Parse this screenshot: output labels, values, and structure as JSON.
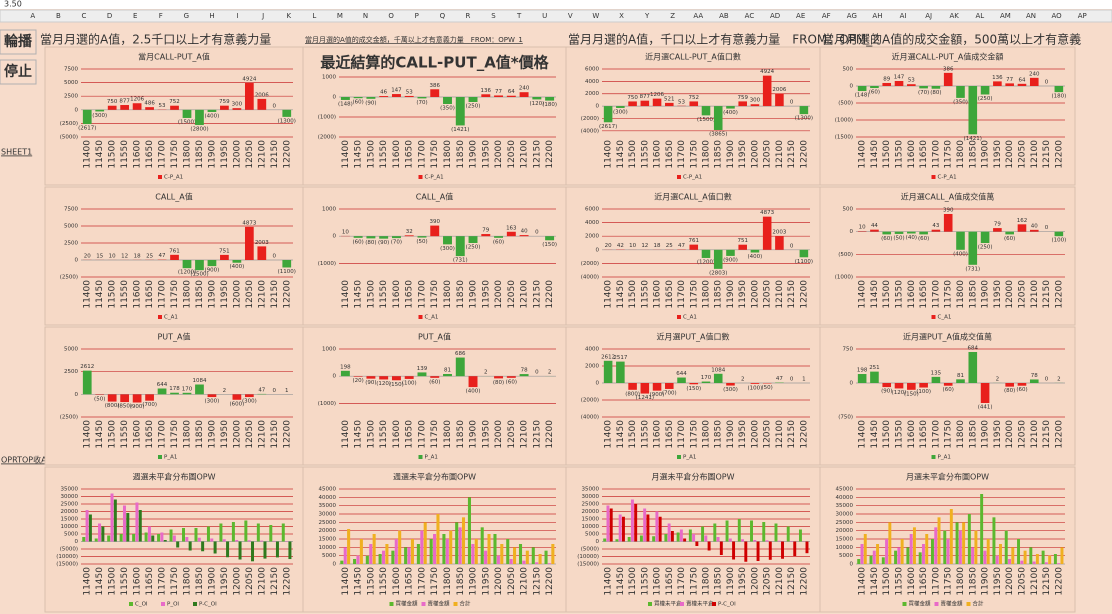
{
  "sheet": {
    "formula_value": "3.50",
    "columns": [
      "A",
      "B",
      "C",
      "D",
      "E",
      "F",
      "G",
      "H",
      "I",
      "J",
      "K",
      "L",
      "M",
      "N",
      "O",
      "P",
      "Q",
      "R",
      "S",
      "T",
      "U",
      "V",
      "W",
      "X",
      "Y",
      "Z",
      "AA",
      "AB",
      "AC",
      "AD",
      "AE",
      "AF",
      "AG",
      "AH",
      "AI",
      "AJ",
      "AK",
      "AL",
      "AM",
      "AN",
      "AO",
      "AP"
    ],
    "buttons": [
      "輪播",
      "停止"
    ],
    "links": [
      "SHEET1",
      "OPRTOP收A"
    ],
    "headers": [
      "當月月選的A值，2.5千口以上才有意義力量",
      "當月月選的A值的成交金額，千萬以上才有意義力量　FROM：OPW_1",
      "當月月選的A值，千口以上才有意義力量　FROM：OPM_2",
      "當月月選的A值的成交金額，500萬以上才有意義"
    ]
  },
  "strikes": [
    "11400",
    "11450",
    "11500",
    "11550",
    "11600",
    "11650",
    "11700",
    "11750",
    "11800",
    "11850",
    "11900",
    "11950",
    "12000",
    "12050",
    "12100",
    "12150",
    "12200"
  ],
  "charts": [
    {
      "type": "bar",
      "title": "當月CALL-PUT_A值",
      "series_name": "C-P_A1",
      "colors": {
        "positive": "#e8201c",
        "negative": "#3da63a"
      },
      "ylim": [
        -5000,
        7500
      ],
      "yticks": [
        7500,
        5000,
        2500,
        0,
        {
          "value": -2500,
          "label": "(2500)"
        },
        {
          "value": -5000,
          "label": "(5000)"
        }
      ],
      "values": [
        -2617,
        -300,
        750,
        877,
        1206,
        486,
        53,
        752,
        -1500,
        -2800,
        -400,
        759,
        300,
        4924,
        2006,
        0,
        -1300
      ],
      "value_labels": [
        "(2617)",
        "(300)",
        "750",
        "877",
        "1206",
        "486",
        "53",
        "752",
        "(1500)",
        "(2800)",
        "(400)",
        "759",
        "300",
        "4924",
        "2006",
        "0",
        "(1300)"
      ]
    },
    {
      "type": "bar",
      "title": "最近結算的CALL-PUT_A值*價格",
      "series_name": "C-P_A1",
      "colors": {
        "positive": "#e8201c",
        "negative": "#3da63a"
      },
      "ylim": [
        -2000,
        1000
      ],
      "yticks": [
        1000,
        0,
        {
          "value": -1000,
          "label": "(1000)"
        },
        {
          "value": -2000,
          "label": "(2000)"
        }
      ],
      "values": [
        -148,
        -60,
        -90,
        46,
        147,
        53,
        -70,
        386,
        -350,
        -1421,
        -250,
        136,
        77,
        64,
        240,
        -120,
        -180
      ],
      "value_labels": [
        "(148)",
        "(60)",
        "(90)",
        "46",
        "147",
        "53",
        "(70)",
        "386",
        "(350)",
        "(1421)",
        "(250)",
        "136",
        "77",
        "64",
        "240",
        "(120)",
        "(180)"
      ]
    },
    {
      "type": "bar",
      "title": "近月選CALL-PUT_A值口數",
      "series_name": "C-P_A1",
      "colors": {
        "positive": "#e8201c",
        "negative": "#3da63a"
      },
      "ylim": [
        -5000,
        6000
      ],
      "yticks": [
        6000,
        4000,
        2000,
        0,
        {
          "value": -2000,
          "label": "(2000)"
        },
        {
          "value": -4000,
          "label": "(4000)"
        }
      ],
      "values": [
        -2617,
        -300,
        750,
        877,
        1206,
        521,
        53,
        752,
        -1500,
        -3865,
        -400,
        759,
        300,
        4924,
        2006,
        0,
        -1300
      ],
      "value_labels": [
        "(2617)",
        "(300)",
        "750",
        "877",
        "1206",
        "521",
        "53",
        "752",
        "(1500)",
        "(3865)",
        "(400)",
        "759",
        "300",
        "4924",
        "2006",
        "0",
        "(1300)"
      ]
    },
    {
      "type": "bar",
      "title": "近月選CALL-PUT_A值成交金額",
      "series_name": "C-P_A1",
      "colors": {
        "positive": "#e8201c",
        "negative": "#3da63a"
      },
      "ylim": [
        -1500,
        500
      ],
      "yticks": [
        500,
        0,
        {
          "value": -500,
          "label": "(500)"
        },
        {
          "value": -1000,
          "label": "(1000)"
        },
        {
          "value": -1500,
          "label": "(1500)"
        }
      ],
      "values": [
        -148,
        -60,
        89,
        147,
        53,
        -70,
        -80,
        386,
        -350,
        -1421,
        -250,
        136,
        77,
        64,
        240,
        0,
        -180
      ],
      "value_labels": [
        "(148)",
        "(60)",
        "89",
        "147",
        "53",
        "(70)",
        "(80)",
        "386",
        "(350)",
        "(1421)",
        "(250)",
        "136",
        "77",
        "64",
        "240",
        "0",
        "(180)"
      ]
    },
    {
      "type": "bar",
      "title": "CALL_A值",
      "series_name": "C_A1",
      "colors": {
        "positive": "#e8201c",
        "negative": "#3da63a"
      },
      "ylim": [
        -2500,
        7500
      ],
      "yticks": [
        7500,
        5000,
        2500,
        0,
        {
          "value": -2500,
          "label": "(2500)"
        }
      ],
      "values": [
        20,
        15,
        10,
        12,
        18,
        25,
        47,
        761,
        -1200,
        -1500,
        -900,
        751,
        -400,
        4873,
        2003,
        0,
        -1100
      ],
      "value_labels": [
        "20",
        "15",
        "10",
        "12",
        "18",
        "25",
        "47",
        "761",
        "(1200)",
        "(1500)",
        "(900)",
        "751",
        "(400)",
        "4873",
        "2003",
        "0",
        "(1100)"
      ]
    },
    {
      "type": "bar",
      "title": "CALL_A值",
      "series_name": "C_A1",
      "colors": {
        "positive": "#e8201c",
        "negative": "#3da63a"
      },
      "ylim": [
        -1500,
        1000
      ],
      "yticks": [
        1000,
        0,
        {
          "value": -1000,
          "label": "(1000)"
        }
      ],
      "values": [
        10,
        -60,
        -80,
        -90,
        -70,
        32,
        -50,
        390,
        -300,
        -731,
        -250,
        79,
        -60,
        163,
        40,
        0,
        -150
      ],
      "value_labels": [
        "10",
        "(60)",
        "(80)",
        "(90)",
        "(70)",
        "32",
        "(50)",
        "390",
        "(300)",
        "(731)",
        "(250)",
        "79",
        "(60)",
        "163",
        "40",
        "0",
        "(150)"
      ]
    },
    {
      "type": "bar",
      "title": "近月選CALL_A值口數",
      "series_name": "C_A1",
      "colors": {
        "positive": "#e8201c",
        "negative": "#3da63a"
      },
      "ylim": [
        -4000,
        6000
      ],
      "yticks": [
        6000,
        4000,
        2000,
        0,
        {
          "value": -2000,
          "label": "(2000)"
        },
        {
          "value": -4000,
          "label": "(4000)"
        }
      ],
      "values": [
        20,
        42,
        10,
        12,
        18,
        25,
        47,
        761,
        -1200,
        -2803,
        -900,
        751,
        -400,
        4873,
        2003,
        0,
        -1100
      ],
      "value_labels": [
        "20",
        "42",
        "10",
        "12",
        "18",
        "25",
        "47",
        "761",
        "(1200)",
        "(2803)",
        "(900)",
        "751",
        "(400)",
        "4873",
        "2003",
        "0",
        "(1100)"
      ]
    },
    {
      "type": "bar",
      "title": "近月選CALL_A值成交值萬",
      "series_name": "C_A1",
      "colors": {
        "positive": "#e8201c",
        "negative": "#3da63a"
      },
      "ylim": [
        -1000,
        500
      ],
      "yticks": [
        500,
        0,
        {
          "value": -500,
          "label": "(500)"
        },
        {
          "value": -1000,
          "label": "(1000)"
        }
      ],
      "values": [
        10,
        44,
        -60,
        -50,
        -40,
        -60,
        43,
        390,
        -400,
        -731,
        -250,
        79,
        -60,
        162,
        40,
        0,
        -100
      ],
      "value_labels": [
        "10",
        "44",
        "(60)",
        "(50)",
        "(40)",
        "(60)",
        "43",
        "390",
        "(400)",
        "(731)",
        "(250)",
        "79",
        "(60)",
        "162",
        "40",
        "0",
        "(100)"
      ]
    },
    {
      "type": "bar",
      "title": "PUT_A值",
      "series_name": "P_A1",
      "colors": {
        "positive": "#3da63a",
        "negative": "#e8201c"
      },
      "ylim": [
        -2500,
        5000
      ],
      "yticks": [
        5000,
        2500,
        0,
        {
          "value": -2500,
          "label": "(2500)"
        }
      ],
      "values": [
        2612,
        -50,
        -800,
        -850,
        -900,
        -700,
        644,
        178,
        170,
        1084,
        -300,
        2,
        -600,
        -300,
        47,
        0,
        1
      ],
      "value_labels": [
        "2612",
        "(50)",
        "(800)",
        "(850)",
        "(900)",
        "(700)",
        "644",
        "178",
        "170",
        "1084",
        "(300)",
        "2",
        "(600)",
        "(300)",
        "47",
        "0",
        "1"
      ]
    },
    {
      "type": "bar",
      "title": "PUT_A值",
      "series_name": "P_A1",
      "colors": {
        "positive": "#3da63a",
        "negative": "#e8201c"
      },
      "ylim": [
        -1500,
        1000
      ],
      "yticks": [
        1000,
        0,
        {
          "value": -1000,
          "label": "(1000)"
        }
      ],
      "values": [
        198,
        -20,
        -90,
        -120,
        -150,
        -100,
        139,
        -60,
        81,
        686,
        -400,
        2,
        -80,
        -60,
        78,
        0,
        2
      ],
      "value_labels": [
        "198",
        "(20)",
        "(90)",
        "(120)",
        "(150)",
        "(100)",
        "139",
        "(60)",
        "81",
        "686",
        "(400)",
        "2",
        "(80)",
        "(60)",
        "78",
        "0",
        "2"
      ]
    },
    {
      "type": "bar",
      "title": "近月選PUT_A值口數",
      "series_name": "P_A1",
      "colors": {
        "positive": "#3da63a",
        "negative": "#e8201c"
      },
      "ylim": [
        -4000,
        4000
      ],
      "yticks": [
        4000,
        2000,
        0,
        {
          "value": -2000,
          "label": "(2000)"
        },
        {
          "value": -4000,
          "label": "(4000)"
        }
      ],
      "values": [
        2612,
        2517,
        -800,
        -1241,
        -900,
        -700,
        644,
        -150,
        170,
        1084,
        -300,
        2,
        -100,
        -50,
        47,
        0,
        1
      ],
      "value_labels": [
        "2612",
        "2517",
        "(800)",
        "(1241)",
        "(900)",
        "(700)",
        "644",
        "(150)",
        "170",
        "1084",
        "(300)",
        "2",
        "(100)",
        "(50)",
        "47",
        "0",
        "1"
      ]
    },
    {
      "type": "bar",
      "title": "近月選PUT_A值成交值萬",
      "series_name": "P_A1",
      "colors": {
        "positive": "#3da63a",
        "negative": "#e8201c"
      },
      "ylim": [
        -750,
        750
      ],
      "yticks": [
        750,
        0,
        {
          "value": -750,
          "label": "(750)"
        }
      ],
      "values": [
        198,
        251,
        -90,
        -120,
        -150,
        -100,
        135,
        -60,
        81,
        684,
        -441,
        2,
        -80,
        -60,
        78,
        0,
        2
      ],
      "value_labels": [
        "198",
        "251",
        "(90)",
        "(120)",
        "(150)",
        "(100)",
        "135",
        "(60)",
        "81",
        "684",
        "(441)",
        "2",
        "(80)",
        "(60)",
        "78",
        "0",
        "2"
      ]
    },
    {
      "type": "grouped_bar",
      "title": "週選未平倉分布圖OPW",
      "ylim": [
        -15000,
        35000
      ],
      "yticks": [
        35000,
        30000,
        25000,
        20000,
        15000,
        10000,
        5000,
        0,
        {
          "value": -5000,
          "label": "(5000)"
        },
        {
          "value": -10000,
          "label": "(10000)"
        },
        {
          "value": -15000,
          "label": "(15000)"
        }
      ],
      "series": [
        {
          "name": "C_OI",
          "color": "#5cb82e",
          "values": [
            3000,
            2000,
            4000,
            5000,
            5000,
            6000,
            5000,
            8000,
            9000,
            9000,
            10000,
            12000,
            13000,
            14000,
            12000,
            11000,
            12000
          ]
        },
        {
          "name": "P_OI",
          "color": "#e86ac8",
          "values": [
            21000,
            12000,
            32000,
            24000,
            26000,
            10000,
            6000,
            4000,
            3000,
            2500,
            2000,
            1500,
            1000,
            800,
            600,
            400,
            300
          ]
        },
        {
          "name": "P-C_OI",
          "color": "#2f7a1e",
          "values": [
            18000,
            10000,
            28000,
            19000,
            21000,
            4000,
            1000,
            -4000,
            -6000,
            -6500,
            -8000,
            -10500,
            -12000,
            -13200,
            -11400,
            -10600,
            -11700
          ]
        }
      ]
    },
    {
      "type": "grouped_bar",
      "title": "週選未平倉分布圖OPW",
      "ylim": [
        0,
        45000
      ],
      "yticks": [
        45000,
        40000,
        35000,
        30000,
        25000,
        20000,
        15000,
        10000,
        5000,
        0
      ],
      "series": [
        {
          "name": "買權金額",
          "color": "#5cb82e",
          "values": [
            2000,
            3000,
            5000,
            6000,
            8000,
            10000,
            12000,
            15000,
            18000,
            25000,
            40000,
            22000,
            18000,
            15000,
            12000,
            10000,
            8000
          ]
        },
        {
          "name": "賣權金額",
          "color": "#e86ac8",
          "values": [
            10000,
            5000,
            12000,
            8000,
            15000,
            10000,
            20000,
            18000,
            15000,
            22000,
            12000,
            8000,
            5000,
            3000,
            2000,
            1000,
            500
          ]
        },
        {
          "name": "合計",
          "color": "#f0b020",
          "values": [
            21000,
            15000,
            18000,
            12000,
            20000,
            15000,
            25000,
            30000,
            20000,
            28000,
            15000,
            18000,
            12000,
            10000,
            8000,
            6000,
            12000
          ]
        }
      ]
    },
    {
      "type": "grouped_bar",
      "title": "月選未平倉分布圖OPW",
      "ylim": [
        -15000,
        35000
      ],
      "yticks": [
        35000,
        30000,
        25000,
        20000,
        15000,
        10000,
        5000,
        0,
        {
          "value": -5000,
          "label": "(5000)"
        },
        {
          "value": -10000,
          "label": "(10000)"
        },
        {
          "value": -15000,
          "label": "(15000)"
        }
      ],
      "series": [
        {
          "name": "買權未平倉",
          "color": "#5cb82e",
          "values": [
            2000,
            1500,
            3000,
            4000,
            3500,
            5000,
            6000,
            8000,
            10000,
            12000,
            14000,
            15000,
            14000,
            13000,
            12000,
            10000,
            8000
          ]
        },
        {
          "name": "賣權未平倉",
          "color": "#e86ac8",
          "values": [
            24000,
            18000,
            28000,
            22000,
            20000,
            12000,
            8000,
            5000,
            4000,
            3000,
            2000,
            1500,
            1000,
            800,
            500,
            300,
            200
          ]
        },
        {
          "name": "P-C_OI",
          "color": "#d00000",
          "values": [
            22000,
            16500,
            25000,
            18000,
            16500,
            7000,
            2000,
            -3000,
            -6000,
            -9000,
            -12000,
            -13500,
            -13000,
            -12200,
            -11500,
            -9700,
            -7800
          ]
        }
      ]
    },
    {
      "type": "grouped_bar",
      "title": "月選未平倉分布圖OPW",
      "ylim": [
        0,
        45000
      ],
      "yticks": [
        45000,
        40000,
        35000,
        30000,
        25000,
        20000,
        15000,
        10000,
        5000,
        0
      ],
      "series": [
        {
          "name": "買權金額",
          "color": "#5cb82e",
          "values": [
            3000,
            5000,
            4000,
            8000,
            10000,
            7000,
            15000,
            20000,
            25000,
            30000,
            42000,
            28000,
            20000,
            15000,
            10000,
            8000,
            6000
          ]
        },
        {
          "name": "賣權金額",
          "color": "#e86ac8",
          "values": [
            12000,
            8000,
            15000,
            10000,
            18000,
            12000,
            22000,
            15000,
            20000,
            10000,
            8000,
            5000,
            3000,
            2000,
            1500,
            1000,
            500
          ]
        },
        {
          "name": "合計",
          "color": "#f0b020",
          "values": [
            18000,
            12000,
            25000,
            15000,
            22000,
            18000,
            28000,
            33000,
            25000,
            20000,
            15000,
            12000,
            10000,
            8000,
            6000,
            5000,
            10000
          ]
        }
      ]
    }
  ]
}
